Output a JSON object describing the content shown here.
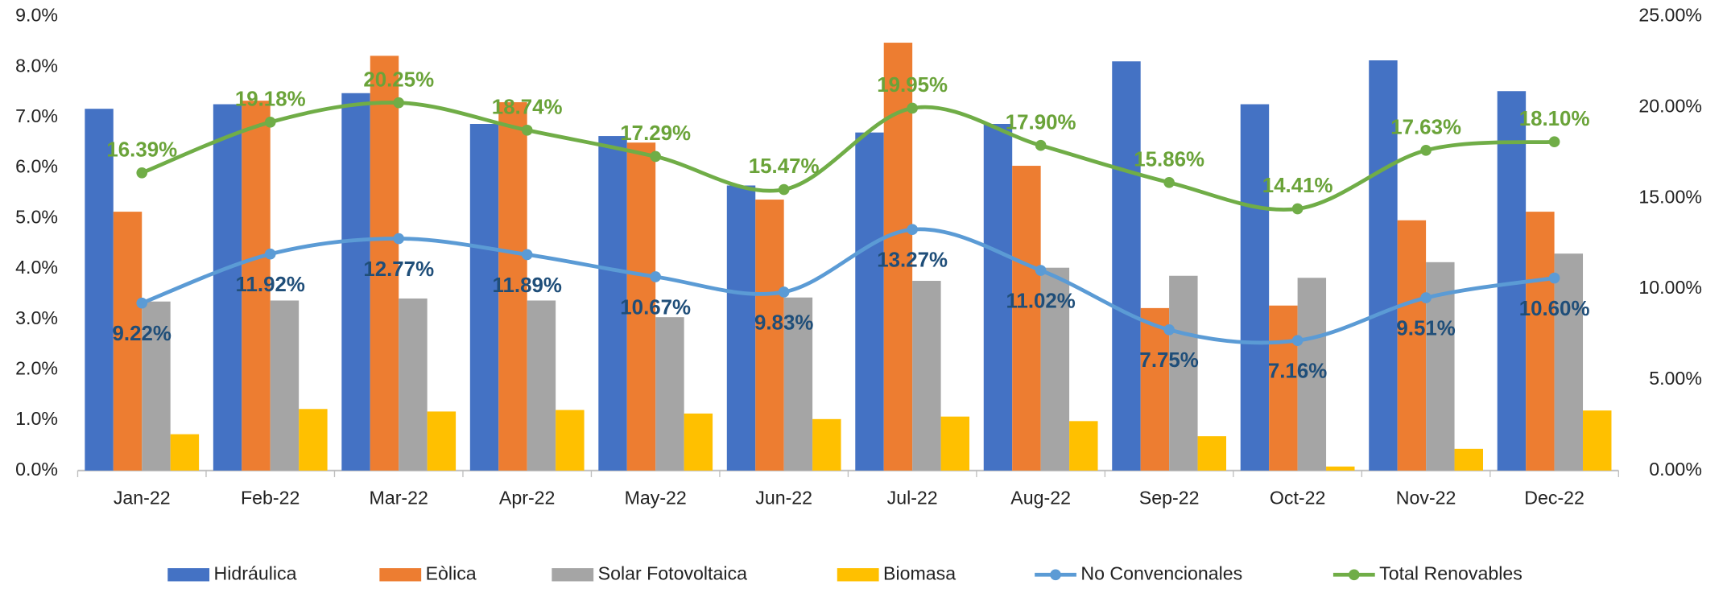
{
  "chart_data": {
    "type": "bar_line",
    "categories": [
      "Jan-22",
      "Feb-22",
      "Mar-22",
      "Apr-22",
      "May-22",
      "Jun-22",
      "Jul-22",
      "Aug-22",
      "Sep-22",
      "Oct-22",
      "Nov-22",
      "Dec-22"
    ],
    "series": [
      {
        "name": "Hidráulica",
        "type": "bar",
        "color": "#4472c4",
        "values": [
          7.17,
          7.26,
          7.48,
          6.87,
          6.63,
          5.65,
          6.7,
          6.87,
          8.11,
          7.26,
          8.13,
          7.52
        ]
      },
      {
        "name": "Eòlica",
        "type": "bar",
        "color": "#ed7d31",
        "values": [
          5.13,
          7.33,
          8.22,
          7.3,
          6.5,
          5.37,
          8.48,
          6.04,
          3.22,
          3.27,
          4.96,
          5.13
        ]
      },
      {
        "name": "Solar Fotovoltaica",
        "type": "bar",
        "color": "#a5a5a5",
        "values": [
          3.35,
          3.37,
          3.41,
          3.37,
          3.04,
          3.43,
          3.76,
          4.02,
          3.86,
          3.82,
          4.13,
          4.3
        ]
      },
      {
        "name": "Biomasa",
        "type": "bar",
        "color": "#ffc000",
        "values": [
          0.72,
          1.22,
          1.17,
          1.2,
          1.13,
          1.02,
          1.07,
          0.98,
          0.68,
          0.08,
          0.43,
          1.19
        ]
      },
      {
        "name": "No Convencionales",
        "type": "line",
        "axis": "y2",
        "color": "#5b9bd5",
        "label_color": "#1f4e79",
        "values": [
          9.22,
          11.92,
          12.77,
          11.89,
          10.67,
          9.83,
          13.27,
          11.02,
          7.75,
          7.16,
          9.51,
          10.6
        ],
        "value_labels": [
          "9.22%",
          "11.92%",
          "12.77%",
          "11.89%",
          "10.67%",
          "9.83%",
          "13.27%",
          "11.02%",
          "7.75%",
          "7.16%",
          "9.51%",
          "10.60%"
        ]
      },
      {
        "name": "Total Renovables",
        "type": "line",
        "axis": "y2",
        "color": "#70ad47",
        "label_color": "#6aa339",
        "values": [
          16.39,
          19.18,
          20.25,
          18.74,
          17.29,
          15.47,
          19.95,
          17.9,
          15.86,
          14.41,
          17.63,
          18.1
        ],
        "value_labels": [
          "16.39%",
          "19.18%",
          "20.25%",
          "18.74%",
          "17.29%",
          "15.47%",
          "19.95%",
          "17.90%",
          "15.86%",
          "14.41%",
          "17.63%",
          "18.10%"
        ]
      }
    ],
    "ylim": [
      0,
      9
    ],
    "yticks": [
      {
        "value": 0,
        "label": "0.0%"
      },
      {
        "value": 1,
        "label": "1.0%"
      },
      {
        "value": 2,
        "label": "2.0%"
      },
      {
        "value": 3,
        "label": "3.0%"
      },
      {
        "value": 4,
        "label": "4.0%"
      },
      {
        "value": 5,
        "label": "5.0%"
      },
      {
        "value": 6,
        "label": "6.0%"
      },
      {
        "value": 7,
        "label": "7.0%"
      },
      {
        "value": 8,
        "label": "8.0%"
      },
      {
        "value": 9,
        "label": "9.0%"
      }
    ],
    "y2lim": [
      0,
      25
    ],
    "y2ticks": [
      {
        "value": 0,
        "label": "0.00%"
      },
      {
        "value": 5,
        "label": "5.00%"
      },
      {
        "value": 10,
        "label": "10.00%"
      },
      {
        "value": 15,
        "label": "15.00%"
      },
      {
        "value": 20,
        "label": "20.00%"
      },
      {
        "value": 25,
        "label": "25.00%"
      }
    ],
    "legend": "bottom"
  }
}
